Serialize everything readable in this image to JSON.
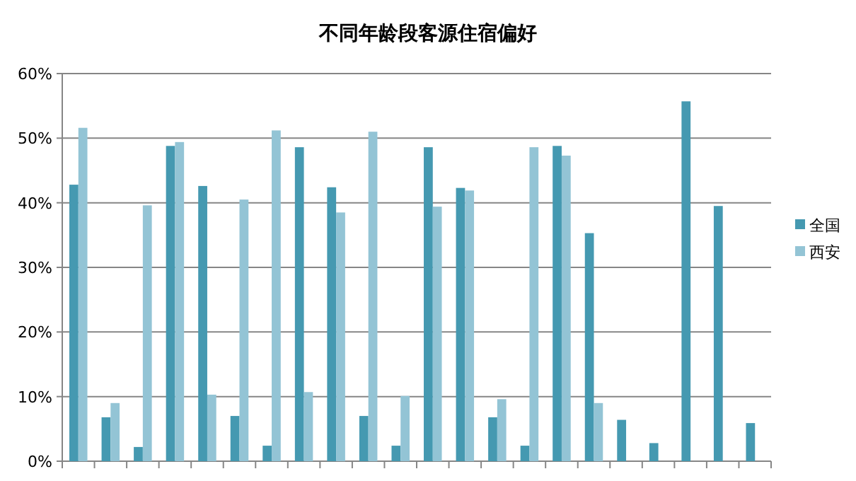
{
  "chart_data": {
    "type": "bar",
    "title": "不同年龄段客源住宿偏好",
    "categories": [
      null,
      null,
      null,
      null,
      null,
      null,
      null,
      null,
      null,
      null,
      null,
      null,
      null,
      null,
      null,
      null,
      null,
      null,
      null,
      null,
      null,
      null
    ],
    "series": [
      {
        "name": "全国",
        "color": "#4599b1",
        "values": [
          42.8,
          6.8,
          2.2,
          48.8,
          42.6,
          7.0,
          2.4,
          48.6,
          42.4,
          7.0,
          2.4,
          48.6,
          42.3,
          6.8,
          2.4,
          48.8,
          35.3,
          6.4,
          2.8,
          55.7,
          39.5,
          5.9
        ]
      },
      {
        "name": "西安",
        "color": "#93c4d5",
        "values": [
          51.6,
          9.0,
          39.6,
          49.4,
          10.3,
          40.5,
          51.2,
          10.7,
          38.5,
          51.0,
          10.1,
          39.4,
          41.9,
          9.6,
          48.6,
          47.3,
          9.0,
          null,
          null,
          null,
          null,
          null
        ]
      }
    ],
    "ylim": [
      0,
      60
    ],
    "yticks": [
      {
        "value": 0,
        "label": "0%"
      },
      {
        "value": 10,
        "label": "10%"
      },
      {
        "value": 20,
        "label": "20%"
      },
      {
        "value": 30,
        "label": "30%"
      },
      {
        "value": 40,
        "label": "40%"
      },
      {
        "value": 50,
        "label": "50%"
      },
      {
        "value": 60,
        "label": "60%"
      }
    ],
    "grid": "y",
    "legend": "right"
  }
}
